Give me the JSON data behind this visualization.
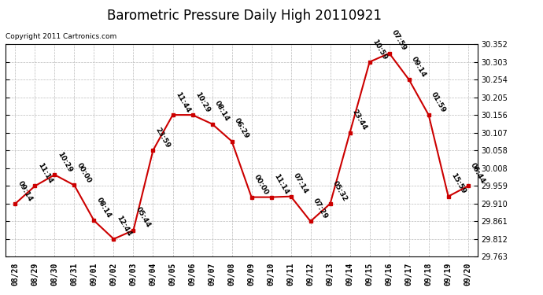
{
  "title": "Barometric Pressure Daily High 20110921",
  "copyright": "Copyright 2011 Cartronics.com",
  "x_labels": [
    "08/28",
    "08/29",
    "08/30",
    "08/31",
    "09/01",
    "09/02",
    "09/03",
    "09/04",
    "09/05",
    "09/06",
    "09/07",
    "09/08",
    "09/09",
    "09/10",
    "09/11",
    "09/12",
    "09/13",
    "09/14",
    "09/15",
    "09/16",
    "09/17",
    "09/18",
    "09/19",
    "09/20"
  ],
  "y_values": [
    29.91,
    29.959,
    29.99,
    29.961,
    29.863,
    29.812,
    29.836,
    30.058,
    30.156,
    30.156,
    30.131,
    30.083,
    29.928,
    29.928,
    29.93,
    29.861,
    29.91,
    30.107,
    30.303,
    30.327,
    30.254,
    30.156,
    29.93,
    29.959
  ],
  "time_labels": [
    "09:14",
    "11:14",
    "10:29",
    "00:00",
    "08:14",
    "12:44",
    "05:44",
    "23:59",
    "11:44",
    "10:29",
    "08:14",
    "06:29",
    "00:00",
    "11:14",
    "07:14",
    "07:29",
    "05:32",
    "23:44",
    "10:59",
    "07:59",
    "09:14",
    "01:59",
    "15:59",
    "06:44"
  ],
  "y_min": 29.763,
  "y_max": 30.352,
  "y_ticks": [
    29.763,
    29.812,
    29.861,
    29.91,
    29.959,
    30.008,
    30.058,
    30.107,
    30.156,
    30.205,
    30.254,
    30.303,
    30.352
  ],
  "line_color": "#cc0000",
  "marker_color": "#cc0000",
  "background_color": "#ffffff",
  "grid_color": "#bbbbbb",
  "title_fontsize": 12,
  "label_fontsize": 6.5,
  "tick_fontsize": 7,
  "copyright_fontsize": 6.5
}
